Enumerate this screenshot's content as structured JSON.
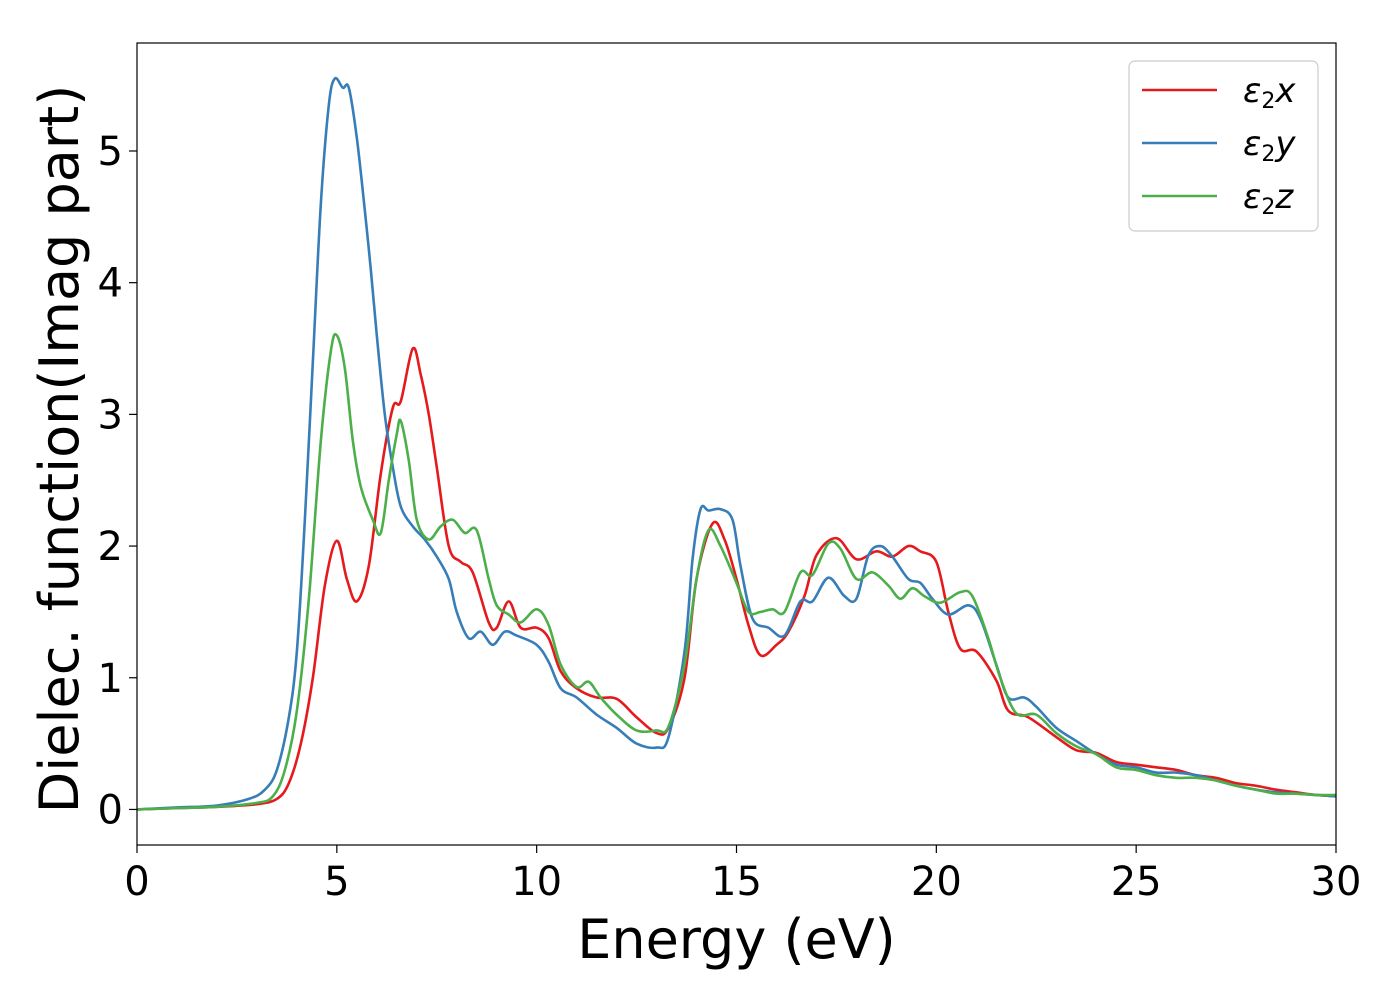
{
  "chart_data": {
    "type": "line",
    "xlabel": "Energy (eV)",
    "ylabel": "Dielec. function(Imag part)",
    "xlim": [
      0,
      30
    ],
    "ylim": [
      -0.27,
      5.82
    ],
    "xticks": [
      0,
      5,
      10,
      15,
      20,
      25,
      30
    ],
    "yticks": [
      0,
      1,
      2,
      3,
      4,
      5
    ],
    "grid": false,
    "legend_position": "top-right",
    "series": [
      {
        "name": "ε2x",
        "legend": {
          "symbol": "ε",
          "sub": "2",
          "axis": "x"
        },
        "color": "#e41a1c",
        "points": [
          [
            0,
            0
          ],
          [
            1,
            0.01
          ],
          [
            2,
            0.02
          ],
          [
            3,
            0.04
          ],
          [
            3.5,
            0.08
          ],
          [
            3.8,
            0.2
          ],
          [
            4.1,
            0.5
          ],
          [
            4.4,
            1.0
          ],
          [
            4.7,
            1.7
          ],
          [
            5.0,
            2.04
          ],
          [
            5.25,
            1.75
          ],
          [
            5.5,
            1.58
          ],
          [
            5.8,
            1.85
          ],
          [
            6.1,
            2.55
          ],
          [
            6.4,
            3.05
          ],
          [
            6.6,
            3.1
          ],
          [
            6.9,
            3.5
          ],
          [
            7.1,
            3.3
          ],
          [
            7.3,
            3.0
          ],
          [
            7.5,
            2.6
          ],
          [
            7.8,
            2.0
          ],
          [
            8.1,
            1.88
          ],
          [
            8.4,
            1.8
          ],
          [
            8.8,
            1.42
          ],
          [
            9.0,
            1.38
          ],
          [
            9.3,
            1.58
          ],
          [
            9.6,
            1.38
          ],
          [
            10.0,
            1.38
          ],
          [
            10.3,
            1.3
          ],
          [
            10.6,
            1.05
          ],
          [
            11.0,
            0.92
          ],
          [
            11.5,
            0.85
          ],
          [
            12.0,
            0.84
          ],
          [
            12.5,
            0.7
          ],
          [
            13.0,
            0.58
          ],
          [
            13.3,
            0.62
          ],
          [
            13.7,
            1.0
          ],
          [
            14.0,
            1.75
          ],
          [
            14.4,
            2.17
          ],
          [
            14.7,
            2.05
          ],
          [
            15.0,
            1.75
          ],
          [
            15.3,
            1.4
          ],
          [
            15.6,
            1.17
          ],
          [
            16.0,
            1.25
          ],
          [
            16.3,
            1.35
          ],
          [
            16.7,
            1.62
          ],
          [
            17.0,
            1.93
          ],
          [
            17.5,
            2.06
          ],
          [
            18.0,
            1.9
          ],
          [
            18.5,
            1.96
          ],
          [
            18.9,
            1.92
          ],
          [
            19.3,
            2.0
          ],
          [
            19.6,
            1.96
          ],
          [
            20.0,
            1.88
          ],
          [
            20.3,
            1.5
          ],
          [
            20.6,
            1.22
          ],
          [
            21.0,
            1.2
          ],
          [
            21.5,
            0.98
          ],
          [
            21.8,
            0.75
          ],
          [
            22.3,
            0.7
          ],
          [
            23.0,
            0.55
          ],
          [
            23.5,
            0.45
          ],
          [
            24.0,
            0.43
          ],
          [
            24.5,
            0.36
          ],
          [
            25.0,
            0.34
          ],
          [
            25.5,
            0.32
          ],
          [
            26.0,
            0.3
          ],
          [
            26.5,
            0.26
          ],
          [
            27.0,
            0.24
          ],
          [
            27.5,
            0.2
          ],
          [
            28.0,
            0.18
          ],
          [
            28.5,
            0.15
          ],
          [
            29.0,
            0.13
          ],
          [
            29.5,
            0.11
          ],
          [
            30.0,
            0.1
          ]
        ]
      },
      {
        "name": "ε2y",
        "legend": {
          "symbol": "ε",
          "sub": "2",
          "axis": "y"
        },
        "color": "#377eb8",
        "points": [
          [
            0,
            0
          ],
          [
            1,
            0.015
          ],
          [
            2,
            0.03
          ],
          [
            2.8,
            0.08
          ],
          [
            3.2,
            0.15
          ],
          [
            3.5,
            0.3
          ],
          [
            3.8,
            0.7
          ],
          [
            4.0,
            1.2
          ],
          [
            4.2,
            2.2
          ],
          [
            4.4,
            3.4
          ],
          [
            4.6,
            4.6
          ],
          [
            4.8,
            5.35
          ],
          [
            4.95,
            5.55
          ],
          [
            5.15,
            5.48
          ],
          [
            5.3,
            5.48
          ],
          [
            5.5,
            5.1
          ],
          [
            5.7,
            4.55
          ],
          [
            5.85,
            4.1
          ],
          [
            6.0,
            3.6
          ],
          [
            6.2,
            3.0
          ],
          [
            6.4,
            2.6
          ],
          [
            6.6,
            2.3
          ],
          [
            6.9,
            2.15
          ],
          [
            7.2,
            2.05
          ],
          [
            7.5,
            1.92
          ],
          [
            7.8,
            1.75
          ],
          [
            8.0,
            1.5
          ],
          [
            8.3,
            1.3
          ],
          [
            8.6,
            1.35
          ],
          [
            8.9,
            1.25
          ],
          [
            9.2,
            1.35
          ],
          [
            9.5,
            1.32
          ],
          [
            10.0,
            1.25
          ],
          [
            10.3,
            1.12
          ],
          [
            10.6,
            0.92
          ],
          [
            11.0,
            0.85
          ],
          [
            11.5,
            0.72
          ],
          [
            12.0,
            0.62
          ],
          [
            12.5,
            0.5
          ],
          [
            13.0,
            0.47
          ],
          [
            13.3,
            0.55
          ],
          [
            13.7,
            1.2
          ],
          [
            13.9,
            1.9
          ],
          [
            14.1,
            2.28
          ],
          [
            14.3,
            2.27
          ],
          [
            14.6,
            2.28
          ],
          [
            14.9,
            2.2
          ],
          [
            15.1,
            1.85
          ],
          [
            15.4,
            1.45
          ],
          [
            15.8,
            1.38
          ],
          [
            16.2,
            1.32
          ],
          [
            16.6,
            1.58
          ],
          [
            16.9,
            1.58
          ],
          [
            17.3,
            1.76
          ],
          [
            17.7,
            1.62
          ],
          [
            18.0,
            1.6
          ],
          [
            18.3,
            1.93
          ],
          [
            18.6,
            2.0
          ],
          [
            18.9,
            1.92
          ],
          [
            19.3,
            1.75
          ],
          [
            19.6,
            1.72
          ],
          [
            19.9,
            1.6
          ],
          [
            20.3,
            1.48
          ],
          [
            20.8,
            1.55
          ],
          [
            21.1,
            1.45
          ],
          [
            21.5,
            1.1
          ],
          [
            21.8,
            0.85
          ],
          [
            22.2,
            0.85
          ],
          [
            22.5,
            0.78
          ],
          [
            23.0,
            0.62
          ],
          [
            23.5,
            0.52
          ],
          [
            24.0,
            0.42
          ],
          [
            24.5,
            0.34
          ],
          [
            25.0,
            0.32
          ],
          [
            25.5,
            0.28
          ],
          [
            26.0,
            0.28
          ],
          [
            26.5,
            0.26
          ],
          [
            27.0,
            0.22
          ],
          [
            27.5,
            0.18
          ],
          [
            28.0,
            0.15
          ],
          [
            28.5,
            0.13
          ],
          [
            29.0,
            0.12
          ],
          [
            29.5,
            0.11
          ],
          [
            30.0,
            0.1
          ]
        ]
      },
      {
        "name": "ε2z",
        "legend": {
          "symbol": "ε",
          "sub": "2",
          "axis": "z"
        },
        "color": "#4daf4a",
        "points": [
          [
            0,
            0
          ],
          [
            1,
            0.01
          ],
          [
            2,
            0.02
          ],
          [
            3,
            0.05
          ],
          [
            3.4,
            0.1
          ],
          [
            3.7,
            0.3
          ],
          [
            4.0,
            0.75
          ],
          [
            4.3,
            1.6
          ],
          [
            4.6,
            2.8
          ],
          [
            4.85,
            3.48
          ],
          [
            5.0,
            3.6
          ],
          [
            5.2,
            3.35
          ],
          [
            5.4,
            2.8
          ],
          [
            5.6,
            2.45
          ],
          [
            5.9,
            2.2
          ],
          [
            6.1,
            2.1
          ],
          [
            6.3,
            2.5
          ],
          [
            6.5,
            2.85
          ],
          [
            6.6,
            2.95
          ],
          [
            6.8,
            2.65
          ],
          [
            7.0,
            2.2
          ],
          [
            7.3,
            2.05
          ],
          [
            7.6,
            2.15
          ],
          [
            7.9,
            2.2
          ],
          [
            8.2,
            2.1
          ],
          [
            8.5,
            2.12
          ],
          [
            8.8,
            1.75
          ],
          [
            9.0,
            1.55
          ],
          [
            9.3,
            1.48
          ],
          [
            9.6,
            1.42
          ],
          [
            10.0,
            1.52
          ],
          [
            10.3,
            1.4
          ],
          [
            10.6,
            1.1
          ],
          [
            11.0,
            0.93
          ],
          [
            11.3,
            0.97
          ],
          [
            11.6,
            0.85
          ],
          [
            12.0,
            0.72
          ],
          [
            12.5,
            0.6
          ],
          [
            13.0,
            0.6
          ],
          [
            13.3,
            0.63
          ],
          [
            13.7,
            1.1
          ],
          [
            14.0,
            1.75
          ],
          [
            14.3,
            2.12
          ],
          [
            14.6,
            2.0
          ],
          [
            15.0,
            1.72
          ],
          [
            15.3,
            1.5
          ],
          [
            15.6,
            1.5
          ],
          [
            15.9,
            1.52
          ],
          [
            16.2,
            1.5
          ],
          [
            16.6,
            1.8
          ],
          [
            16.9,
            1.78
          ],
          [
            17.3,
            2.02
          ],
          [
            17.6,
            1.98
          ],
          [
            18.0,
            1.75
          ],
          [
            18.4,
            1.8
          ],
          [
            18.8,
            1.7
          ],
          [
            19.1,
            1.6
          ],
          [
            19.4,
            1.68
          ],
          [
            19.7,
            1.62
          ],
          [
            20.1,
            1.57
          ],
          [
            20.6,
            1.65
          ],
          [
            20.9,
            1.62
          ],
          [
            21.3,
            1.3
          ],
          [
            21.6,
            1.0
          ],
          [
            22.0,
            0.73
          ],
          [
            22.5,
            0.72
          ],
          [
            23.0,
            0.58
          ],
          [
            23.5,
            0.48
          ],
          [
            24.0,
            0.42
          ],
          [
            24.5,
            0.32
          ],
          [
            25.0,
            0.3
          ],
          [
            25.5,
            0.26
          ],
          [
            26.0,
            0.24
          ],
          [
            26.5,
            0.24
          ],
          [
            27.0,
            0.22
          ],
          [
            27.5,
            0.18
          ],
          [
            28.0,
            0.15
          ],
          [
            28.5,
            0.12
          ],
          [
            29.0,
            0.12
          ],
          [
            29.5,
            0.11
          ],
          [
            30.0,
            0.11
          ]
        ]
      }
    ]
  }
}
